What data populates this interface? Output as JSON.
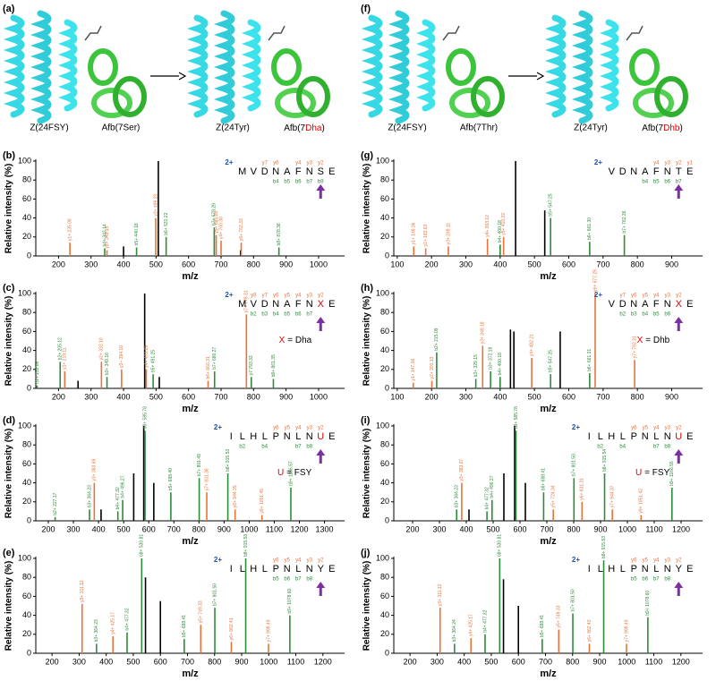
{
  "schemes": [
    {
      "label": "(a)",
      "left_z": "Z(24FSY)",
      "left_afb": "Afb(7Ser)",
      "right_z": "Z(24Tyr)",
      "right_afb_pre": "Afb(7",
      "right_afb_red": "Dha",
      "right_afb_post": ")"
    },
    {
      "label": "(f)",
      "left_z": "Z(24FSY)",
      "left_afb": "Afb(7Thr)",
      "right_z": "Z(24Tyr)",
      "right_afb_pre": "Afb(7",
      "right_afb_red": "Dhb",
      "right_afb_post": ")"
    }
  ],
  "chart_data": [
    {
      "type": "spectrum",
      "panel": "(b)",
      "xlabel": "m/z",
      "ylabel": "Relative intensity (%)",
      "xlim": [
        130,
        1080
      ],
      "xticks": [
        200,
        300,
        400,
        500,
        600,
        700,
        800,
        900,
        1000
      ],
      "ylim": [
        0,
        100
      ],
      "yticks": [
        0,
        20,
        40,
        60,
        80,
        100
      ],
      "peaks": {
        "x": [
          235,
          342,
          349,
          400,
          440,
          499,
          507,
          531,
          679,
          685,
          700,
          760,
          762,
          878
        ],
        "values": [
          14,
          8,
          6,
          10,
          9,
          40,
          100,
          20,
          30,
          22,
          16,
          6,
          14,
          9
        ],
        "colors": [
          "#e8743b",
          "#2e8b3a",
          "#e8743b",
          "#000000",
          "#2e8b3a",
          "#e8743b",
          "#000000",
          "#2e8b3a",
          "#2e8b3a",
          "#e8743b",
          "#e8743b",
          "#000000",
          "#e8743b",
          "#2e8b3a"
        ],
        "labels": [
          "y1+ 235.09",
          "b4+ 342.14",
          "y2+ 349.13",
          null,
          "b5+ 440.18",
          "y3+ 499.20",
          null,
          "b6+ 531.22",
          "b7+ 679.29",
          "y5+ 685.28",
          "y4+ 700.30",
          null,
          "y6+ 762.33",
          "b8+ 878.38"
        ]
      },
      "sequence": {
        "charge": "2+",
        "residues": [
          "M",
          "V",
          "D",
          "N",
          "A",
          "F",
          "N",
          "S",
          "E"
        ],
        "upper": [
          null,
          null,
          "y7",
          "y6",
          null,
          "y4",
          "y3",
          "y2",
          null
        ],
        "lower": [
          null,
          null,
          null,
          "b4",
          "b5",
          "b6",
          "b7",
          "b8",
          null
        ],
        "highlight": null,
        "note_symbol": null,
        "note_text": null
      }
    },
    {
      "type": "spectrum",
      "panel": "(c)",
      "xlabel": "m/z",
      "ylabel": "Relative intensity (%)",
      "xlim": [
        130,
        1080
      ],
      "xticks": [
        200,
        300,
        400,
        500,
        600,
        700,
        800,
        900,
        1000
      ],
      "ylim": [
        0,
        100
      ],
      "yticks": [
        0,
        20,
        40,
        60,
        80,
        100
      ],
      "peaks": {
        "x": [
          134,
          205,
          219,
          260,
          332,
          349,
          394,
          465,
          470,
          491,
          510,
          660,
          680,
          778,
          793,
          861
        ],
        "values": [
          3,
          28,
          18,
          8,
          28,
          12,
          20,
          100,
          20,
          15,
          12,
          8,
          18,
          78,
          12,
          10
        ],
        "colors": [
          "#2e8b3a",
          "#2e8b3a",
          "#e8743b",
          "#000000",
          "#e8743b",
          "#2e8b3a",
          "#e8743b",
          "#000000",
          "#e8743b",
          "#2e8b3a",
          "#000000",
          "#e8743b",
          "#2e8b3a",
          "#e8743b",
          "#2e8b3a",
          "#2e8b3a"
        ],
        "labels": [
          "b1+ 133.06",
          "b2+ 205.12",
          "y1+ 219.11",
          null,
          "y2+ 332.10",
          "b3+ 349.16",
          "y3+ 394.10",
          null,
          "y4+ 470.25",
          "b5+ 491.25",
          null,
          "b6+ 660.31",
          "b7+ 680.27",
          "y7+ 778.31",
          "y7 793.33",
          "b8+ 861.35"
        ]
      },
      "sequence": {
        "charge": "2+",
        "residues": [
          "M",
          "V",
          "D",
          "N",
          "A",
          "F",
          "N",
          "X",
          "E"
        ],
        "upper": [
          null,
          "y8",
          "y7",
          "y6",
          "y5",
          "y4",
          "y3",
          "y2",
          null
        ],
        "lower": [
          null,
          "b2",
          "b3",
          "b4",
          "b5",
          "b6",
          "b7",
          null,
          null
        ],
        "highlight": 7,
        "note_symbol": "X",
        "note_text": "= Dha"
      }
    },
    {
      "type": "spectrum",
      "panel": "(d)",
      "xlabel": "m/z",
      "ylabel": "Relative intensity (%)",
      "xlim": [
        150,
        1380
      ],
      "xticks": [
        200,
        300,
        400,
        500,
        600,
        700,
        800,
        900,
        1000,
        1100,
        1200,
        1300
      ],
      "ylim": [
        0,
        100
      ],
      "yticks": [
        0,
        20,
        40,
        60,
        80,
        100
      ],
      "peaks": {
        "x": [
          227,
          364,
          383,
          410,
          477,
          496,
          540,
          580,
          585,
          620,
          688,
          801,
          831,
          915,
          944,
          1051,
          1166
        ],
        "values": [
          4,
          12,
          40,
          12,
          10,
          22,
          50,
          100,
          95,
          40,
          30,
          45,
          30,
          50,
          12,
          6,
          35
        ],
        "colors": [
          "#2e8b3a",
          "#2e8b3a",
          "#e8743b",
          "#000000",
          "#2e8b3a",
          "#2e8b3a",
          "#000000",
          "#000000",
          "#2e8b3a",
          "#000000",
          "#2e8b3a",
          "#2e8b3a",
          "#e8743b",
          "#2e8b3a",
          "#e8743b",
          "#e8743b",
          "#2e8b3a"
        ],
        "labels": [
          "b2+ 227.17",
          "b3+ 364.23",
          "y3+ 383.69",
          null,
          "b4+ 477.32",
          "b4+ 496.27",
          null,
          null,
          "b8+ 585.78",
          null,
          "b5+ 688.40",
          "b7+ 801.49",
          "y7+ 831.36",
          "b8+ 915.53",
          "y8+ 944.35",
          "y9+ 1051.45",
          "b9+ 1166.57"
        ]
      },
      "sequence": {
        "charge": "2+",
        "residues": [
          "I",
          "L",
          "H",
          "L",
          "P",
          "N",
          "L",
          "N",
          "U",
          "E"
        ],
        "upper": [
          null,
          null,
          null,
          null,
          "y6",
          "y5",
          "y4",
          "y3",
          "y2",
          null
        ],
        "lower": [
          null,
          "b2",
          null,
          "b4",
          null,
          null,
          "b7",
          "b8",
          null,
          null
        ],
        "highlight": 8,
        "note_symbol": "U",
        "note_text": "= FSY"
      }
    },
    {
      "type": "spectrum",
      "panel": "(e)",
      "xlabel": "m/z",
      "ylabel": "Relative intensity (%)",
      "xlim": [
        140,
        1280
      ],
      "xticks": [
        200,
        300,
        400,
        500,
        600,
        700,
        800,
        900,
        1000,
        1100,
        1200
      ],
      "ylim": [
        0,
        100
      ],
      "yticks": [
        0,
        20,
        40,
        60,
        80,
        100
      ],
      "peaks": {
        "x": [
          311,
          364,
          425,
          477,
          531,
          545,
          600,
          688,
          749,
          801,
          862,
          915,
          999,
          1078
        ],
        "values": [
          52,
          10,
          18,
          22,
          100,
          80,
          55,
          15,
          30,
          48,
          12,
          100,
          10,
          40
        ],
        "colors": [
          "#e8743b",
          "#2e8b3a",
          "#e8743b",
          "#2e8b3a",
          "#2e8b3a",
          "#000000",
          "#000000",
          "#2e8b3a",
          "#e8743b",
          "#2e8b3a",
          "#e8743b",
          "#2e8b3a",
          "#e8743b",
          "#2e8b3a"
        ],
        "labels": [
          "y3+ 311.12",
          "b3+ 364.23",
          "y4+ 425.17",
          "b4+ 477.32",
          "b8+ 530.81",
          null,
          null,
          "b5+ 688.41",
          "y5+ 749.33",
          "b7+ 801.50",
          "y6+ 862.41",
          "b8+ 915.53",
          "y7+ 999.49",
          "b9+ 1078.60"
        ]
      },
      "sequence": {
        "charge": "2+",
        "residues": [
          "I",
          "L",
          "H",
          "L",
          "P",
          "N",
          "L",
          "N",
          "Y",
          "E"
        ],
        "upper": [
          null,
          null,
          null,
          null,
          "y6",
          "y5",
          "y4",
          "y3",
          "y2",
          null
        ],
        "lower": [
          null,
          null,
          null,
          null,
          "b5",
          "b6",
          "b7",
          "b8",
          null,
          null
        ],
        "highlight": null,
        "note_symbol": null,
        "note_text": null
      }
    },
    {
      "type": "spectrum",
      "panel": "(g)",
      "xlabel": "m/z",
      "ylabel": "Relative intensity (%)",
      "xlim": [
        90,
        990
      ],
      "xticks": [
        100,
        200,
        300,
        400,
        500,
        600,
        700,
        800,
        900
      ],
      "ylim": [
        0,
        100
      ],
      "yticks": [
        0,
        20,
        40,
        60,
        80,
        100
      ],
      "peaks": {
        "x": [
          148,
          183,
          249,
          363,
          400,
          410,
          445,
          530,
          547,
          661,
          762
        ],
        "values": [
          10,
          8,
          10,
          18,
          12,
          20,
          100,
          48,
          40,
          15,
          22
        ],
        "colors": [
          "#e8743b",
          "#e8743b",
          "#e8743b",
          "#e8743b",
          "#2e8b3a",
          "#e8743b",
          "#000000",
          "#000000",
          "#2e8b3a",
          "#2e8b3a",
          "#2e8b3a"
        ],
        "labels": [
          "y1+ 148.06",
          "y2+ 183.63",
          "y3+ 249.11",
          "y4+ 363.12",
          "b4+ 400.18",
          "y5+ 410.22",
          null,
          null,
          "b5+ 547.25",
          "b6+ 661.30",
          "b7+ 762.36"
        ]
      },
      "sequence": {
        "charge": "2+",
        "residues": [
          "V",
          "D",
          "N",
          "A",
          "F",
          "N",
          "T",
          "E"
        ],
        "upper": [
          null,
          null,
          null,
          null,
          "y4",
          "y3",
          "y2",
          "y1"
        ],
        "lower": [
          null,
          null,
          null,
          "b4",
          "b5",
          "b6",
          "b7",
          null
        ],
        "highlight": null,
        "note_symbol": null,
        "note_text": null
      }
    },
    {
      "type": "spectrum",
      "panel": "(h)",
      "xlabel": "m/z",
      "ylabel": "Relative intensity (%)",
      "xlim": [
        90,
        990
      ],
      "xticks": [
        100,
        200,
        300,
        400,
        500,
        600,
        700,
        800,
        900
      ],
      "ylim": [
        0,
        100
      ],
      "yticks": [
        0,
        20,
        40,
        60,
        80,
        100
      ],
      "peaks": {
        "x": [
          147,
          201,
          215,
          329,
          349,
          372,
          400,
          430,
          440,
          492,
          547,
          575,
          661,
          677,
          792
        ],
        "values": [
          6,
          8,
          38,
          10,
          45,
          18,
          12,
          62,
          60,
          32,
          15,
          60,
          16,
          100,
          30
        ],
        "colors": [
          "#e8743b",
          "#e8743b",
          "#2e8b3a",
          "#2e8b3a",
          "#e8743b",
          "#2e8b3a",
          "#2e8b3a",
          "#000000",
          "#000000",
          "#e8743b",
          "#2e8b3a",
          "#000000",
          "#2e8b3a",
          "#e8743b",
          "#e8743b"
        ],
        "labels": [
          "y1+ 147.06",
          "y2+ 201.13",
          "b2+ 215.09",
          "b3+ 329.15",
          "y3+ 349.18",
          "b3+ 372.19",
          "b4+ 400.18",
          null,
          null,
          "y4+ 492.21",
          "b5+ 547.25",
          null,
          "b6+ 661.31",
          "y6+ 677.29",
          "y7+ 792.31"
        ]
      },
      "sequence": {
        "charge": "2+",
        "residues": [
          "V",
          "D",
          "N",
          "A",
          "F",
          "N",
          "X",
          "E"
        ],
        "upper": [
          null,
          "y7",
          "y6",
          "y5",
          "y4",
          "y3",
          "y2",
          null
        ],
        "lower": [
          null,
          "b2",
          "b3",
          "b4",
          "b5",
          "b6",
          null,
          null
        ],
        "highlight": 6,
        "note_symbol": "X",
        "note_text": "= Dhb"
      }
    },
    {
      "type": "spectrum",
      "panel": "(i)",
      "xlabel": "m/z",
      "ylabel": "Relative intensity (%)",
      "xlim": [
        130,
        1280
      ],
      "xticks": [
        200,
        300,
        400,
        500,
        600,
        700,
        800,
        900,
        1000,
        1100,
        1200
      ],
      "ylim": [
        0,
        100
      ],
      "yticks": [
        0,
        20,
        40,
        60,
        80,
        100
      ],
      "peaks": {
        "x": [
          364,
          383,
          410,
          477,
          496,
          540,
          580,
          585,
          620,
          688,
          724,
          801,
          831,
          915,
          944,
          1051,
          1166
        ],
        "values": [
          12,
          40,
          12,
          10,
          22,
          50,
          100,
          95,
          40,
          30,
          12,
          45,
          20,
          50,
          12,
          6,
          35
        ],
        "colors": [
          "#2e8b3a",
          "#e8743b",
          "#000000",
          "#2e8b3a",
          "#2e8b3a",
          "#000000",
          "#000000",
          "#2e8b3a",
          "#000000",
          "#2e8b3a",
          "#e8743b",
          "#2e8b3a",
          "#e8743b",
          "#2e8b3a",
          "#e8743b",
          "#e8743b",
          "#2e8b3a"
        ],
        "labels": [
          "b3+ 364.23",
          "y3+ 383.97",
          null,
          "b4+ 477.32",
          "b4+ 496.27",
          null,
          null,
          "b8+ 585.78",
          null,
          "b6+ 688.41",
          "y5+ 724.34",
          "b7+ 801.50",
          "y6+ 831.31",
          "b8+ 915.54",
          "y7+ 944.37",
          "y9+ 1051.42",
          "b9+ 1166.55"
        ]
      },
      "sequence": {
        "charge": "2+",
        "residues": [
          "I",
          "L",
          "H",
          "L",
          "P",
          "N",
          "L",
          "N",
          "U",
          "E"
        ],
        "upper": [
          null,
          null,
          null,
          null,
          "y6",
          "y5",
          "y4",
          "y3",
          "y2",
          null
        ],
        "lower": [
          null,
          "b2",
          null,
          "b4",
          null,
          null,
          "b7",
          "b8",
          null,
          null
        ],
        "highlight": 8,
        "note_symbol": "U",
        "note_text": "= FSY"
      }
    },
    {
      "type": "spectrum",
      "panel": "(j)",
      "xlabel": "m/z",
      "ylabel": "Relative intensity (%)",
      "xlim": [
        140,
        1280
      ],
      "xticks": [
        200,
        300,
        400,
        500,
        600,
        700,
        800,
        900,
        1000,
        1100,
        1200
      ],
      "ylim": [
        0,
        100
      ],
      "yticks": [
        0,
        20,
        40,
        60,
        80,
        100
      ],
      "peaks": {
        "x": [
          311,
          364,
          425,
          477,
          531,
          545,
          600,
          688,
          749,
          801,
          862,
          915,
          999,
          1078
        ],
        "values": [
          48,
          10,
          16,
          20,
          100,
          78,
          50,
          15,
          25,
          42,
          10,
          98,
          10,
          38
        ],
        "colors": [
          "#e8743b",
          "#2e8b3a",
          "#e8743b",
          "#2e8b3a",
          "#2e8b3a",
          "#000000",
          "#000000",
          "#2e8b3a",
          "#e8743b",
          "#2e8b3a",
          "#e8743b",
          "#2e8b3a",
          "#e8743b",
          "#2e8b3a"
        ],
        "labels": [
          "y3+ 311.12",
          "b3+ 364.24",
          "y4+ 425.17",
          "b4+ 477.32",
          "b8+ 530.81",
          null,
          null,
          "b5+ 688.41",
          "y5+ 749.33",
          "b7+ 801.50",
          "y6+ 862.43",
          "b8+ 915.53",
          "y7+ 999.49",
          "b9+ 1078.60"
        ]
      },
      "sequence": {
        "charge": "2+",
        "residues": [
          "I",
          "L",
          "H",
          "L",
          "P",
          "N",
          "L",
          "N",
          "Y",
          "E"
        ],
        "upper": [
          null,
          null,
          null,
          null,
          "y6",
          "y5",
          "y4",
          "y3",
          "y2",
          null
        ],
        "lower": [
          null,
          null,
          null,
          null,
          "b5",
          "b6",
          "b7",
          "b8",
          null,
          null
        ],
        "highlight": null,
        "note_symbol": null,
        "note_text": null
      }
    }
  ]
}
